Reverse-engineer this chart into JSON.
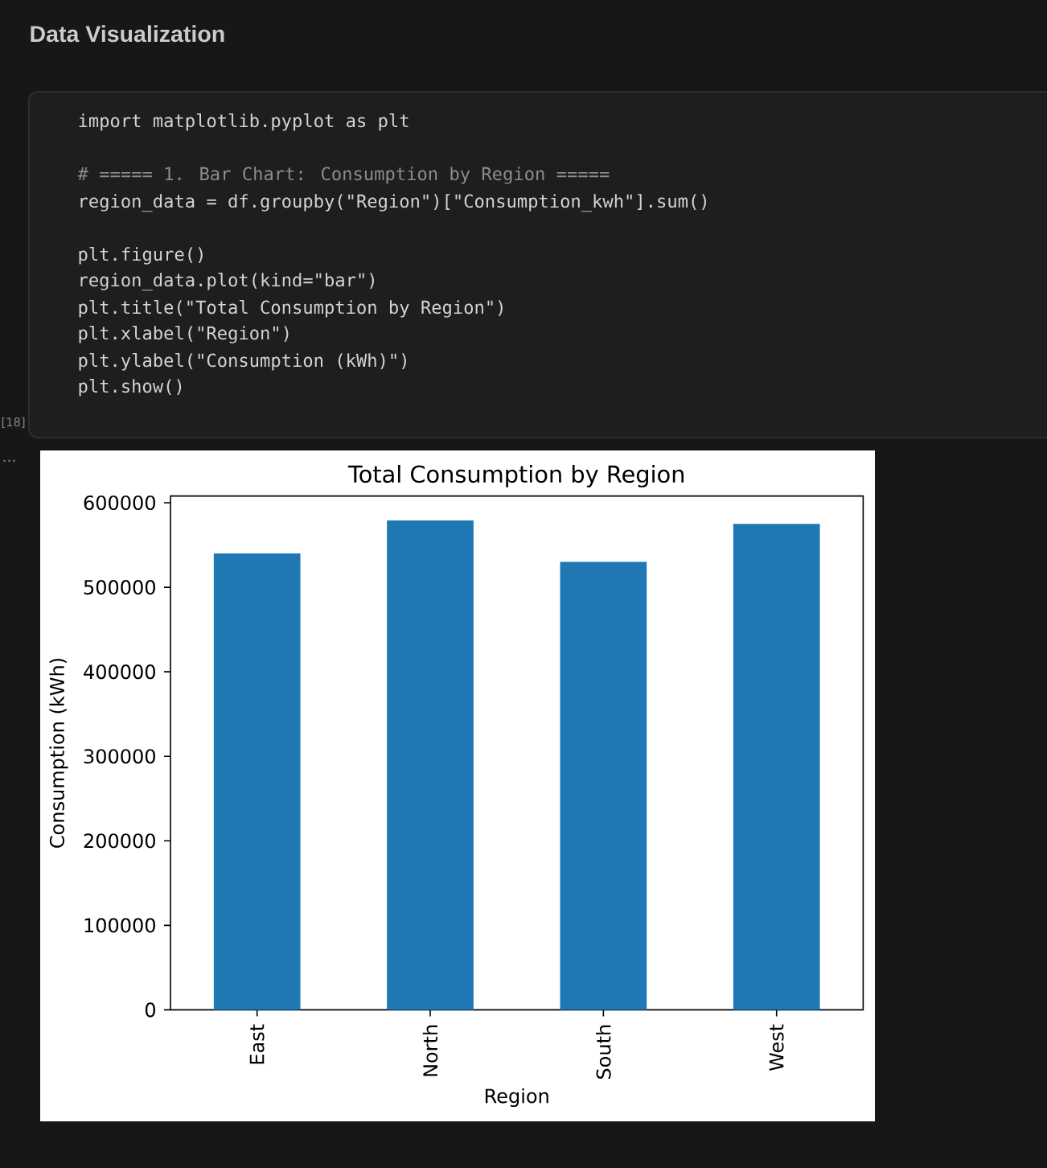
{
  "chart_data": [
    {
      "type": "other",
      "title": "Data Visualization",
      "annotations": [
        "import matplotlib.pyplot as plt",
        "# ===== 1. Bar Chart: Consumption by Region =====",
        "region_data = df.groupby(\"Region\")[\"Consumption_kwh\"].sum()",
        "plt.figure()",
        "region_data.plot(kind=\"bar\")",
        "plt.title(\"Total Consumption by Region\")",
        "plt.xlabel(\"Region\")",
        "plt.ylabel(\"Consumption (kWh)\")",
        "plt.show()",
        "[18]",
        "..."
      ]
    },
    {
      "type": "bar",
      "title": "Total Consumption by Region",
      "xlabel": "Region",
      "ylabel": "Consumption (kWh)",
      "categories": [
        "East",
        "North",
        "South",
        "West"
      ],
      "values": [
        540000,
        579000,
        530000,
        575000
      ],
      "color": "#1f77b4",
      "ylim": [
        0,
        608000
      ],
      "yticks": [
        0,
        100000,
        200000,
        300000,
        400000,
        500000,
        600000
      ]
    }
  ]
}
